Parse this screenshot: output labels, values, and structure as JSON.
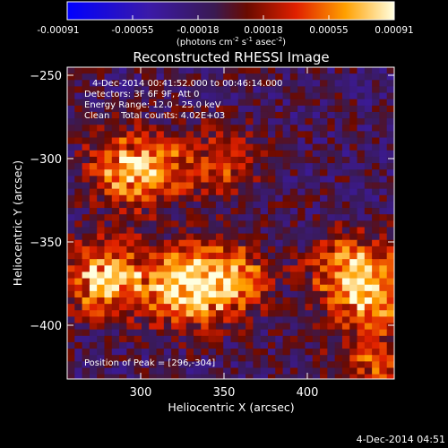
{
  "chart_data": {
    "type": "heatmap",
    "title": "Reconstructed RHESSI Image",
    "xlabel": "Heliocentric X (arcsec)",
    "ylabel": "Heliocentric Y (arcsec)",
    "xlim": [
      262,
      438
    ],
    "ylim": [
      -437,
      -242
    ],
    "x_ticks": [
      300,
      350,
      400
    ],
    "y_ticks": [
      -250,
      -300,
      -350,
      -400
    ],
    "colorbar": {
      "min": -0.00091,
      "max": 0.00091,
      "ticks": [
        "-0.00091",
        "-0.00055",
        "-0.00018",
        "0.00018",
        "0.00055",
        "0.00091"
      ],
      "unit_text": "(photons cm",
      "unit_sup1": "-2",
      "unit_mid": " s",
      "unit_sup2": "-1",
      "unit_mid2": " asec",
      "unit_sup3": "-2",
      "unit_end": ")"
    },
    "annotations": {
      "time_range": "4-Dec-2014 00:41:52.000 to 00:46:14.000",
      "detectors": "Detectors: 3F 6F 9F, Att 0",
      "energy": "Energy Range: 12.0 - 25.0 keV",
      "clean": "Clean    Total counts: 4.02E+03",
      "peak": "Position of Peak = [296,-304]"
    },
    "peak_position": [
      296,
      -304
    ],
    "bright_sources": [
      {
        "x": 296,
        "y": -304,
        "value": 0.00091
      },
      {
        "x": 280,
        "y": -372,
        "value": 0.00085
      },
      {
        "x": 322,
        "y": -378,
        "value": 0.0008
      },
      {
        "x": 346,
        "y": -372,
        "value": 0.0007
      },
      {
        "x": 340,
        "y": -300,
        "value": 0.00045
      },
      {
        "x": 412,
        "y": -366,
        "value": 0.00062
      },
      {
        "x": 425,
        "y": -385,
        "value": 0.0006
      },
      {
        "x": 425,
        "y": -430,
        "value": 0.0005
      }
    ],
    "footer_date": "4-Dec-2014 04:51"
  }
}
